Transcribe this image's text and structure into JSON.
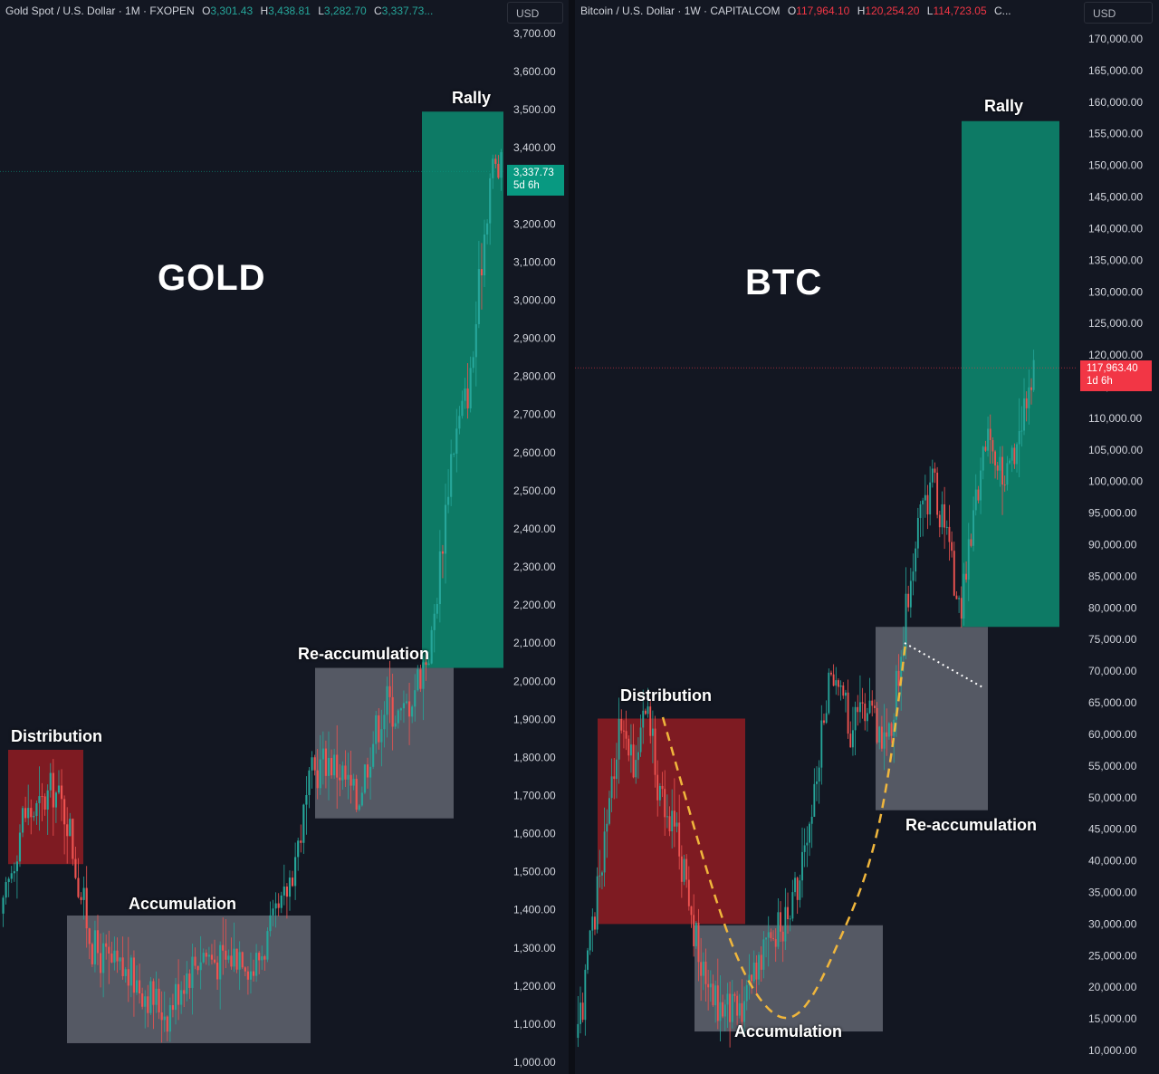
{
  "chart_data": [
    {
      "type": "candlestick",
      "title": "GOLD",
      "header": {
        "symbol": "Gold Spot / U.S. Dollar · 1M · FXOPEN",
        "O": "3,301.43",
        "H": "3,438.81",
        "L": "3,282.70",
        "C": "3,337.73..."
      },
      "currency": "USD",
      "y_axis": {
        "ylim": [
          1000,
          3700
        ],
        "ticks": [
          "3,700.00",
          "3,600.00",
          "3,500.00",
          "3,400.00",
          "3,300.00",
          "3,200.00",
          "3,100.00",
          "3,000.00",
          "2,900.00",
          "2,800.00",
          "2,700.00",
          "2,600.00",
          "2,500.00",
          "2,400.00",
          "2,300.00",
          "2,200.00",
          "2,100.00",
          "2,000.00",
          "1,900.00",
          "1,800.00",
          "1,700.00",
          "1,600.00",
          "1,500.00",
          "1,400.00",
          "1,300.00",
          "1,200.00",
          "1,100.00",
          "1,000.00"
        ]
      },
      "last_price": {
        "value": 3337.73,
        "label": "3,337.73",
        "countdown": "5d 6h",
        "color": "#089981"
      },
      "zones": [
        {
          "label": "Distribution",
          "color": "#8b1c22",
          "low": 1520,
          "high": 1820
        },
        {
          "label": "Accumulation",
          "color": "#5d606b",
          "low": 1050,
          "high": 1385
        },
        {
          "label": "Re-accumulation",
          "color": "#5d606b",
          "low": 1640,
          "high": 2035
        },
        {
          "label": "Rally",
          "color": "#0d8069",
          "low": 2035,
          "high": 3495
        }
      ],
      "price_path": [
        [
          0,
          1390
        ],
        [
          0.02,
          1530
        ],
        [
          0.04,
          1650
        ],
        [
          0.07,
          1660
        ],
        [
          0.1,
          1720
        ],
        [
          0.13,
          1640
        ],
        [
          0.15,
          1480
        ],
        [
          0.18,
          1300
        ],
        [
          0.22,
          1250
        ],
        [
          0.26,
          1220
        ],
        [
          0.3,
          1170
        ],
        [
          0.33,
          1130
        ],
        [
          0.36,
          1220
        ],
        [
          0.4,
          1290
        ],
        [
          0.44,
          1260
        ],
        [
          0.48,
          1300
        ],
        [
          0.5,
          1240
        ],
        [
          0.53,
          1320
        ],
        [
          0.56,
          1400
        ],
        [
          0.59,
          1560
        ],
        [
          0.62,
          1750
        ],
        [
          0.65,
          1800
        ],
        [
          0.68,
          1760
        ],
        [
          0.71,
          1680
        ],
        [
          0.74,
          1840
        ],
        [
          0.77,
          1950
        ],
        [
          0.8,
          1900
        ],
        [
          0.83,
          2000
        ],
        [
          0.86,
          2100
        ],
        [
          0.88,
          2350
        ],
        [
          0.9,
          2600
        ],
        [
          0.92,
          2700
        ],
        [
          0.94,
          2800
        ],
        [
          0.96,
          3100
        ],
        [
          0.98,
          3350
        ],
        [
          1,
          3337
        ]
      ]
    },
    {
      "type": "candlestick",
      "title": "BTC",
      "header": {
        "symbol": "Bitcoin / U.S. Dollar · 1W · CAPITALCOM",
        "O": "117,964.10",
        "H": "120,254.20",
        "L": "114,723.05",
        "C": "C..."
      },
      "currency": "USD",
      "y_axis": {
        "ylim": [
          10000,
          170000
        ],
        "ticks": [
          "170,000.00",
          "165,000.00",
          "160,000.00",
          "155,000.00",
          "150,000.00",
          "145,000.00",
          "140,000.00",
          "135,000.00",
          "130,000.00",
          "125,000.00",
          "120,000.00",
          "115,000.00",
          "110,000.00",
          "105,000.00",
          "100,000.00",
          "95,000.00",
          "90,000.00",
          "85,000.00",
          "80,000.00",
          "75,000.00",
          "70,000.00",
          "65,000.00",
          "60,000.00",
          "55,000.00",
          "50,000.00",
          "45,000.00",
          "40,000.00",
          "35,000.00",
          "30,000.00",
          "25,000.00",
          "20,000.00",
          "15,000.00",
          "10,000.00"
        ]
      },
      "last_price": {
        "value": 117963.4,
        "label": "117,963.40",
        "countdown": "1d 6h",
        "color": "#f23645"
      },
      "zones": [
        {
          "label": "Distribution",
          "color": "#8b1c22",
          "low": 30000,
          "high": 62500
        },
        {
          "label": "Accumulation",
          "color": "#5d606b",
          "low": 13000,
          "high": 29800
        },
        {
          "label": "Re-accumulation",
          "color": "#5d606b",
          "low": 48000,
          "high": 77000
        },
        {
          "label": "Rally",
          "color": "#0d8069",
          "low": 77000,
          "high": 157000
        }
      ],
      "price_path": [
        [
          0,
          12000
        ],
        [
          0.03,
          28000
        ],
        [
          0.06,
          45000
        ],
        [
          0.09,
          60000
        ],
        [
          0.12,
          55000
        ],
        [
          0.15,
          65000
        ],
        [
          0.18,
          50000
        ],
        [
          0.21,
          45000
        ],
        [
          0.24,
          36000
        ],
        [
          0.27,
          22000
        ],
        [
          0.3,
          18000
        ],
        [
          0.33,
          17000
        ],
        [
          0.36,
          16000
        ],
        [
          0.39,
          24000
        ],
        [
          0.42,
          28000
        ],
        [
          0.45,
          30000
        ],
        [
          0.48,
          35000
        ],
        [
          0.51,
          45000
        ],
        [
          0.54,
          65000
        ],
        [
          0.57,
          70000
        ],
        [
          0.6,
          60000
        ],
        [
          0.63,
          65000
        ],
        [
          0.66,
          60000
        ],
        [
          0.69,
          62000
        ],
        [
          0.72,
          80000
        ],
        [
          0.75,
          95000
        ],
        [
          0.78,
          100000
        ],
        [
          0.81,
          90000
        ],
        [
          0.84,
          80000
        ],
        [
          0.87,
          95000
        ],
        [
          0.9,
          108000
        ],
        [
          0.93,
          100000
        ],
        [
          0.96,
          105000
        ],
        [
          1,
          117963
        ]
      ]
    }
  ]
}
